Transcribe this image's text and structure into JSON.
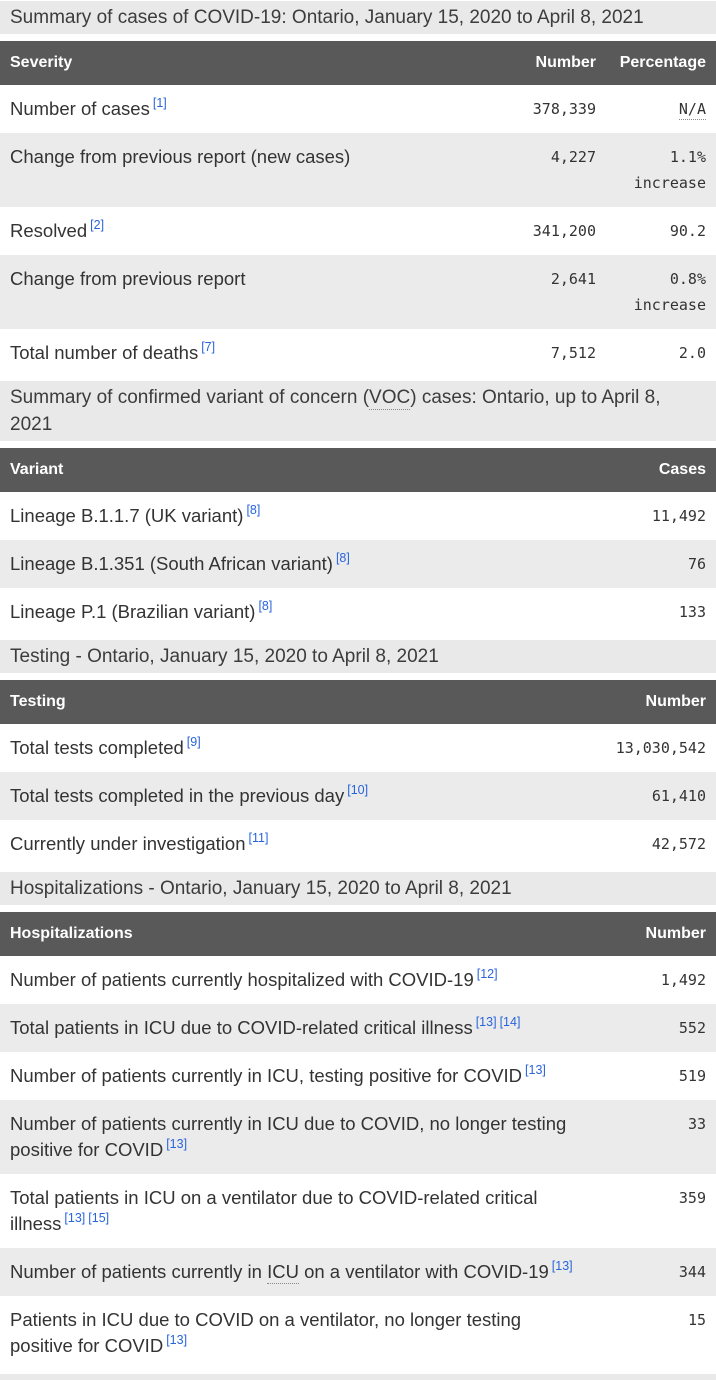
{
  "colors": {
    "table_header_bg": "#595959",
    "table_header_text": "#ffffff",
    "row_alt_bg": "#ebebeb",
    "section_heading_bg": "#e9e9e9",
    "footnote_link": "#2864dc",
    "body_text": "#333333"
  },
  "case_summary": {
    "heading": "Summary of cases of COVID-19: Ontario, January 15, 2020 to April 8, 2021",
    "col_severity": "Severity",
    "col_number": "Number",
    "col_percentage": "Percentage",
    "rows": {
      "cases": {
        "label": "Number of cases",
        "fn1": "[1]",
        "number": "378,339",
        "percentage": "N/A"
      },
      "change_new": {
        "label": "Change from previous report (new cases)",
        "number": "4,227",
        "percentage": "1.1% increase"
      },
      "resolved": {
        "label": "Resolved",
        "fn1": "[2]",
        "number": "341,200",
        "percentage": "90.2"
      },
      "change_prev": {
        "label": "Change from previous report",
        "number": "2,641",
        "percentage": "0.8% increase"
      },
      "deaths": {
        "label": "Total number of deaths",
        "fn1": "[7]",
        "number": "7,512",
        "percentage": "2.0"
      }
    }
  },
  "voc_summary": {
    "heading_pre": "Summary of confirmed variant of concern (",
    "heading_abbr": "VOC",
    "heading_post": ") cases: Ontario, up to April 8, 2021",
    "col_variant": "Variant",
    "col_cases": "Cases",
    "rows": {
      "b117": {
        "label": "Lineage B.1.1.7 (UK variant)",
        "fn1": "[8]",
        "value": "11,492"
      },
      "b1351": {
        "label": "Lineage B.1.351 (South African variant)",
        "fn1": "[8]",
        "value": "76"
      },
      "p1": {
        "label": "Lineage P.1 (Brazilian variant)",
        "fn1": "[8]",
        "value": "133"
      }
    }
  },
  "testing": {
    "heading": "Testing - Ontario, January 15, 2020 to April 8, 2021",
    "col_testing": "Testing",
    "col_number": "Number",
    "rows": {
      "total_tests": {
        "label": "Total tests completed",
        "fn1": "[9]",
        "value": "13,030,542"
      },
      "previous_day": {
        "label": "Total tests completed in the previous day",
        "fn1": "[10]",
        "value": "61,410"
      },
      "under_investigation": {
        "label": "Currently under investigation",
        "fn1": "[11]",
        "value": "42,572"
      }
    }
  },
  "hospitalizations": {
    "heading": "Hospitalizations - Ontario, January 15, 2020 to April 8, 2021",
    "col_hospitalizations": "Hospitalizations",
    "col_number": "Number",
    "rows": {
      "hospitalized": {
        "label": "Number of patients currently hospitalized with COVID-19",
        "fn1": "[12]",
        "value": "1,492"
      },
      "icu_total": {
        "label": "Total patients in ICU due to COVID-related critical illness",
        "fn1": "[13]",
        "fn2": "[14]",
        "value": "552"
      },
      "icu_positive": {
        "label": "Number of patients currently in ICU, testing positive for COVID",
        "fn1": "[13]",
        "value": "519"
      },
      "icu_no_longer_positive": {
        "label": "Number of patients currently in ICU due to COVID, no longer testing positive for COVID",
        "fn1": "[13]",
        "value": "33"
      },
      "ventilator_total": {
        "label": "Total patients in ICU on a ventilator due to COVID-related critical illness",
        "fn1": "[13]",
        "fn2": "[15]",
        "value": "359"
      },
      "ventilator_covid": {
        "label_pre": "Number of patients currently in ",
        "label_abbr": "ICU",
        "label_post": " on a ventilator with COVID-19",
        "fn1": "[13]",
        "value": "344"
      },
      "ventilator_no_longer_positive": {
        "label": "Patients in ICU due to COVID on a ventilator, no longer testing positive for COVID",
        "fn1": "[13]",
        "value": "15"
      }
    }
  }
}
